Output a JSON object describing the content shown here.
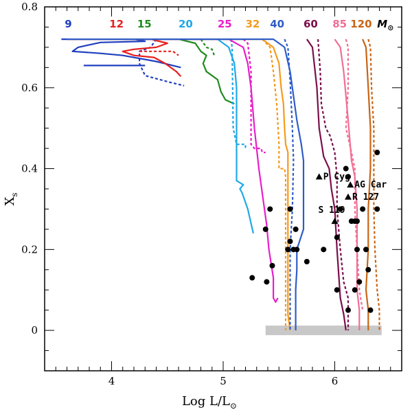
{
  "chart_data": {
    "type": "line",
    "xlabel": "Log L/L",
    "xlabel_sub": "⊙",
    "ylabel": "X",
    "ylabel_sub": "s",
    "xlim": [
      3.4,
      6.6
    ],
    "ylim": [
      -0.1,
      0.8
    ],
    "x_ticks": [
      4,
      5,
      6
    ],
    "y_ticks": [
      0,
      0.2,
      0.4,
      0.6,
      0.8
    ],
    "y_tick_labels": [
      "0",
      "0.2",
      "0.4",
      "0.6",
      "0.8"
    ],
    "grid": false,
    "mass_unit_label": "M",
    "mass_unit_sub": "⊙",
    "series": [
      {
        "name": "9",
        "color": "#1f3fbf",
        "solid": [
          [
            3.55,
            0.72
          ],
          [
            4.2,
            0.72
          ],
          [
            4.3,
            0.715
          ],
          [
            3.9,
            0.712
          ],
          [
            3.7,
            0.7
          ],
          [
            3.65,
            0.69
          ],
          [
            3.9,
            0.685
          ],
          [
            4.1,
            0.68
          ],
          [
            4.4,
            0.665
          ],
          [
            4.62,
            0.65
          ]
        ],
        "solid2": [
          [
            3.75,
            0.655
          ],
          [
            4.3,
            0.655
          ]
        ],
        "dashed": [
          [
            4.4,
            0.72
          ],
          [
            4.35,
            0.7
          ],
          [
            4.25,
            0.69
          ],
          [
            4.25,
            0.66
          ],
          [
            4.3,
            0.63
          ],
          [
            4.5,
            0.615
          ],
          [
            4.65,
            0.605
          ]
        ]
      },
      {
        "name": "12",
        "color": "#e81e1e",
        "solid": [
          [
            3.6,
            0.72
          ],
          [
            4.35,
            0.72
          ],
          [
            4.5,
            0.71
          ],
          [
            4.4,
            0.7
          ],
          [
            4.2,
            0.695
          ],
          [
            4.1,
            0.69
          ],
          [
            4.2,
            0.68
          ],
          [
            4.38,
            0.675
          ],
          [
            4.48,
            0.66
          ],
          [
            4.58,
            0.64
          ],
          [
            4.62,
            0.628
          ]
        ],
        "dashed": [
          [
            4.25,
            0.69
          ],
          [
            4.55,
            0.69
          ],
          [
            4.6,
            0.68
          ]
        ]
      },
      {
        "name": "15",
        "color": "#1e8c1e",
        "solid": [
          [
            3.6,
            0.72
          ],
          [
            4.6,
            0.72
          ],
          [
            4.75,
            0.71
          ],
          [
            4.8,
            0.69
          ],
          [
            4.85,
            0.68
          ],
          [
            4.82,
            0.66
          ],
          [
            4.85,
            0.64
          ],
          [
            4.95,
            0.62
          ],
          [
            4.98,
            0.59
          ],
          [
            5.02,
            0.57
          ],
          [
            5.1,
            0.56
          ]
        ],
        "dashed": [
          [
            4.8,
            0.72
          ],
          [
            4.85,
            0.7
          ],
          [
            4.9,
            0.695
          ],
          [
            4.92,
            0.68
          ]
        ]
      },
      {
        "name": "20",
        "color": "#1ea8e8",
        "solid": [
          [
            3.6,
            0.72
          ],
          [
            4.95,
            0.72
          ],
          [
            5.05,
            0.7
          ],
          [
            5.1,
            0.66
          ],
          [
            5.12,
            0.6
          ],
          [
            5.12,
            0.4
          ],
          [
            5.12,
            0.37
          ],
          [
            5.18,
            0.36
          ],
          [
            5.15,
            0.35
          ],
          [
            5.17,
            0.34
          ],
          [
            5.22,
            0.3
          ],
          [
            5.27,
            0.24
          ]
        ],
        "dashed": [
          [
            5.07,
            0.72
          ],
          [
            5.08,
            0.7
          ],
          [
            5.09,
            0.5
          ],
          [
            5.12,
            0.46
          ],
          [
            5.2,
            0.46
          ],
          [
            5.2,
            0.45
          ]
        ]
      },
      {
        "name": "25",
        "color": "#e81ecb",
        "solid": [
          [
            3.6,
            0.72
          ],
          [
            5.05,
            0.72
          ],
          [
            5.18,
            0.7
          ],
          [
            5.22,
            0.66
          ],
          [
            5.25,
            0.6
          ],
          [
            5.28,
            0.5
          ],
          [
            5.32,
            0.4
          ],
          [
            5.36,
            0.32
          ],
          [
            5.39,
            0.26
          ],
          [
            5.41,
            0.2
          ],
          [
            5.45,
            0.13
          ],
          [
            5.45,
            0.08
          ],
          [
            5.47,
            0.07
          ],
          [
            5.49,
            0.08
          ]
        ],
        "dashed": [
          [
            5.18,
            0.72
          ],
          [
            5.22,
            0.71
          ],
          [
            5.25,
            0.64
          ],
          [
            5.25,
            0.46
          ],
          [
            5.28,
            0.45
          ],
          [
            5.34,
            0.45
          ],
          [
            5.35,
            0.44
          ],
          [
            5.38,
            0.44
          ]
        ]
      },
      {
        "name": "32",
        "color": "#f59a1e",
        "solid": [
          [
            3.6,
            0.72
          ],
          [
            5.35,
            0.72
          ],
          [
            5.45,
            0.7
          ],
          [
            5.5,
            0.66
          ],
          [
            5.52,
            0.6
          ],
          [
            5.54,
            0.56
          ],
          [
            5.55,
            0.5
          ],
          [
            5.56,
            0.46
          ],
          [
            5.58,
            0.44
          ],
          [
            5.58,
            0.04
          ],
          [
            5.6,
            0.0
          ]
        ],
        "dashed": [
          [
            5.35,
            0.72
          ],
          [
            5.42,
            0.7
          ],
          [
            5.45,
            0.64
          ],
          [
            5.48,
            0.56
          ],
          [
            5.5,
            0.46
          ],
          [
            5.5,
            0.4
          ],
          [
            5.55,
            0.4
          ],
          [
            5.56,
            0.38
          ],
          [
            5.56,
            0.0
          ]
        ]
      },
      {
        "name": "40",
        "color": "#2e5cc8",
        "solid": [
          [
            3.6,
            0.72
          ],
          [
            5.45,
            0.72
          ],
          [
            5.55,
            0.7
          ],
          [
            5.6,
            0.64
          ],
          [
            5.63,
            0.58
          ],
          [
            5.66,
            0.52
          ],
          [
            5.7,
            0.46
          ],
          [
            5.72,
            0.42
          ],
          [
            5.72,
            0.35
          ],
          [
            5.72,
            0.25
          ],
          [
            5.66,
            0.2
          ],
          [
            5.66,
            0.15
          ],
          [
            5.65,
            0.1
          ],
          [
            5.65,
            0.0
          ]
        ],
        "dashed": [
          [
            5.55,
            0.72
          ],
          [
            5.58,
            0.7
          ],
          [
            5.6,
            0.62
          ],
          [
            5.62,
            0.5
          ],
          [
            5.63,
            0.42
          ],
          [
            5.62,
            0.3
          ],
          [
            5.6,
            0.2
          ],
          [
            5.6,
            0.0
          ]
        ]
      },
      {
        "name": "60",
        "color": "#7a0e4a",
        "solid": [
          [
            5.75,
            0.72
          ],
          [
            5.8,
            0.7
          ],
          [
            5.84,
            0.6
          ],
          [
            5.86,
            0.5
          ],
          [
            5.9,
            0.43
          ],
          [
            5.95,
            0.4
          ],
          [
            5.97,
            0.35
          ],
          [
            6.0,
            0.3
          ],
          [
            6.02,
            0.2
          ],
          [
            6.05,
            0.08
          ],
          [
            6.08,
            0.04
          ],
          [
            6.1,
            0.0
          ]
        ],
        "dashed": [
          [
            5.85,
            0.72
          ],
          [
            5.87,
            0.64
          ],
          [
            5.88,
            0.56
          ],
          [
            5.92,
            0.5
          ],
          [
            5.96,
            0.48
          ],
          [
            6.0,
            0.44
          ],
          [
            6.02,
            0.38
          ],
          [
            6.02,
            0.3
          ],
          [
            6.05,
            0.2
          ],
          [
            6.08,
            0.12
          ],
          [
            6.12,
            0.08
          ],
          [
            6.12,
            0.0
          ]
        ]
      },
      {
        "name": "85",
        "color": "#f06e94",
        "solid": [
          [
            6.0,
            0.72
          ],
          [
            6.05,
            0.7
          ],
          [
            6.08,
            0.64
          ],
          [
            6.1,
            0.58
          ],
          [
            6.12,
            0.52
          ],
          [
            6.15,
            0.42
          ],
          [
            6.18,
            0.38
          ],
          [
            6.2,
            0.3
          ],
          [
            6.2,
            0.2
          ],
          [
            6.2,
            0.1
          ],
          [
            6.22,
            0.05
          ],
          [
            6.22,
            0.0
          ]
        ],
        "dashed": [
          [
            6.1,
            0.72
          ],
          [
            6.12,
            0.7
          ],
          [
            6.12,
            0.6
          ],
          [
            6.1,
            0.5
          ],
          [
            6.15,
            0.44
          ],
          [
            6.18,
            0.4
          ],
          [
            6.18,
            0.3
          ],
          [
            6.2,
            0.2
          ],
          [
            6.22,
            0.1
          ],
          [
            6.25,
            0.05
          ]
        ]
      },
      {
        "name": "120",
        "color": "#c86414",
        "solid": [
          [
            6.25,
            0.72
          ],
          [
            6.28,
            0.7
          ],
          [
            6.3,
            0.6
          ],
          [
            6.32,
            0.5
          ],
          [
            6.32,
            0.4
          ],
          [
            6.3,
            0.3
          ],
          [
            6.3,
            0.2
          ],
          [
            6.28,
            0.1
          ],
          [
            6.3,
            0.05
          ],
          [
            6.3,
            0.0
          ]
        ],
        "dashed": [
          [
            6.3,
            0.72
          ],
          [
            6.32,
            0.7
          ],
          [
            6.33,
            0.6
          ],
          [
            6.35,
            0.5
          ],
          [
            6.35,
            0.4
          ],
          [
            6.35,
            0.3
          ],
          [
            6.36,
            0.2
          ],
          [
            6.38,
            0.1
          ],
          [
            6.4,
            0.05
          ],
          [
            6.4,
            0.0
          ]
        ]
      }
    ],
    "baseline": [
      [
        5.38,
        0.0
      ],
      [
        6.42,
        0.0
      ]
    ],
    "observed": [
      [
        5.26,
        0.13
      ],
      [
        5.38,
        0.25
      ],
      [
        5.42,
        0.3
      ],
      [
        5.39,
        0.12
      ],
      [
        5.44,
        0.16
      ],
      [
        5.6,
        0.3
      ],
      [
        5.6,
        0.22
      ],
      [
        5.63,
        0.2
      ],
      [
        5.58,
        0.2
      ],
      [
        5.65,
        0.25
      ],
      [
        5.66,
        0.2
      ],
      [
        5.75,
        0.17
      ],
      [
        5.9,
        0.2
      ],
      [
        6.02,
        0.23
      ],
      [
        6.05,
        0.3
      ],
      [
        6.1,
        0.4
      ],
      [
        6.12,
        0.38
      ],
      [
        6.15,
        0.27
      ],
      [
        6.18,
        0.27
      ],
      [
        6.2,
        0.27
      ],
      [
        6.25,
        0.3
      ],
      [
        6.28,
        0.2
      ],
      [
        6.3,
        0.15
      ],
      [
        6.2,
        0.2
      ],
      [
        6.22,
        0.12
      ],
      [
        6.18,
        0.1
      ],
      [
        6.12,
        0.05
      ],
      [
        6.02,
        0.1
      ],
      [
        6.32,
        0.05
      ],
      [
        6.38,
        0.44
      ],
      [
        6.38,
        0.3
      ]
    ],
    "named_stars": [
      {
        "label": "P Cyg",
        "x": 5.86,
        "y": 0.38
      },
      {
        "label": "AG Car",
        "x": 6.14,
        "y": 0.36
      },
      {
        "label": "R 127",
        "x": 6.12,
        "y": 0.33
      },
      {
        "label": "S 119",
        "x": 6.0,
        "y": 0.27
      }
    ]
  }
}
